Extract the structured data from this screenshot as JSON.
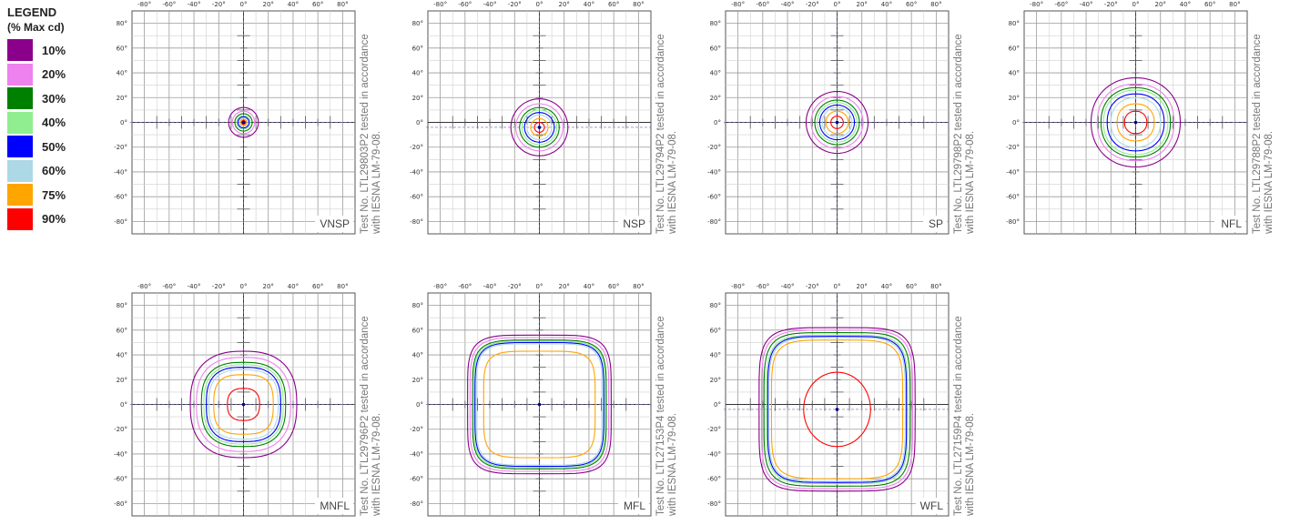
{
  "legend": {
    "title": "LEGEND",
    "subtitle": "(% Max cd)",
    "items": [
      {
        "label": "10%",
        "color": "#8b008b",
        "level": 10
      },
      {
        "label": "20%",
        "color": "#ee82ee",
        "level": 20
      },
      {
        "label": "30%",
        "color": "#008000",
        "level": 30
      },
      {
        "label": "40%",
        "color": "#90ee90",
        "level": 40
      },
      {
        "label": "50%",
        "color": "#0000ff",
        "level": 50
      },
      {
        "label": "60%",
        "color": "#add8e6",
        "level": 60
      },
      {
        "label": "75%",
        "color": "#ffa500",
        "level": 75
      },
      {
        "label": "90%",
        "color": "#ff0000",
        "level": 90
      }
    ]
  },
  "chart_data": [
    {
      "type": "contour",
      "tag": "VNSP",
      "note_line1": "Test No. LTL29803P2 tested in accordance",
      "note_line2": "with IESNA LM-79-08.",
      "xlim": [
        -90,
        90
      ],
      "ylim": [
        -90,
        90
      ],
      "x_ticks": [
        "-80°",
        "-60°",
        "-40°",
        "-20°",
        "0°",
        "20°",
        "40°",
        "60°",
        "80°"
      ],
      "y_ticks": [
        "80°",
        "60°",
        "40°",
        "20°",
        "0°",
        "-20°",
        "-40°",
        "-60°",
        "-80°"
      ],
      "center": [
        0,
        0
      ],
      "contours": [
        {
          "level": 10,
          "w": 12,
          "h": 12,
          "sq": 2
        },
        {
          "level": 20,
          "w": 9,
          "h": 9,
          "sq": 2
        },
        {
          "level": 30,
          "w": 7,
          "h": 7,
          "sq": 2
        },
        {
          "level": 40,
          "w": 5.5,
          "h": 5.5,
          "sq": 2
        },
        {
          "level": 50,
          "w": 4.5,
          "h": 4.5,
          "sq": 2
        },
        {
          "level": 60,
          "w": 3.5,
          "h": 3.5,
          "sq": 2
        },
        {
          "level": 75,
          "w": 2.5,
          "h": 2.5,
          "sq": 2
        },
        {
          "level": 90,
          "w": 1.5,
          "h": 1.5,
          "sq": 2
        }
      ]
    },
    {
      "type": "contour",
      "tag": "NSP",
      "note_line1": "Test No. LTL29794P2 tested in accordance",
      "note_line2": "with IESNA LM-79-08.",
      "xlim": [
        -90,
        90
      ],
      "ylim": [
        -90,
        90
      ],
      "x_ticks": [
        "-80°",
        "-60°",
        "-40°",
        "-20°",
        "0°",
        "20°",
        "40°",
        "60°",
        "80°"
      ],
      "y_ticks": [
        "80°",
        "60°",
        "40°",
        "20°",
        "0°",
        "-20°",
        "-40°",
        "-60°",
        "-80°"
      ],
      "center": [
        0,
        -4
      ],
      "contours": [
        {
          "level": 10,
          "w": 23,
          "h": 23,
          "sq": 2
        },
        {
          "level": 20,
          "w": 19,
          "h": 19,
          "sq": 2
        },
        {
          "level": 30,
          "w": 16,
          "h": 16,
          "sq": 2
        },
        {
          "level": 40,
          "w": 14,
          "h": 14,
          "sq": 2
        },
        {
          "level": 50,
          "w": 12,
          "h": 12,
          "sq": 2
        },
        {
          "level": 60,
          "w": 10,
          "h": 10,
          "sq": 2
        },
        {
          "level": 75,
          "w": 7,
          "h": 7,
          "sq": 2
        },
        {
          "level": 90,
          "w": 4,
          "h": 4,
          "sq": 2
        }
      ]
    },
    {
      "type": "contour",
      "tag": "SP",
      "note_line1": "Test No. LTL29798P2 tested in accordance",
      "note_line2": "with IESNA LM-79-08.",
      "xlim": [
        -90,
        90
      ],
      "ylim": [
        -90,
        90
      ],
      "x_ticks": [
        "-80°",
        "-60°",
        "-40°",
        "-20°",
        "0°",
        "20°",
        "40°",
        "60°",
        "80°"
      ],
      "y_ticks": [
        "80°",
        "60°",
        "40°",
        "20°",
        "0°",
        "-20°",
        "-40°",
        "-60°",
        "-80°"
      ],
      "center": [
        0,
        0
      ],
      "contours": [
        {
          "level": 10,
          "w": 25,
          "h": 25,
          "sq": 2
        },
        {
          "level": 20,
          "w": 21,
          "h": 21,
          "sq": 2
        },
        {
          "level": 30,
          "w": 18,
          "h": 18,
          "sq": 2
        },
        {
          "level": 40,
          "w": 16,
          "h": 16,
          "sq": 2
        },
        {
          "level": 50,
          "w": 14,
          "h": 14,
          "sq": 2
        },
        {
          "level": 60,
          "w": 12,
          "h": 12,
          "sq": 2
        },
        {
          "level": 75,
          "w": 9,
          "h": 9,
          "sq": 2
        },
        {
          "level": 90,
          "w": 5,
          "h": 5,
          "sq": 2
        }
      ]
    },
    {
      "type": "contour",
      "tag": "NFL",
      "note_line1": "Test No. LTL29788P2 tested in accordance",
      "note_line2": "with IESNA LM-79-08.",
      "xlim": [
        -90,
        90
      ],
      "ylim": [
        -90,
        90
      ],
      "x_ticks": [
        "-80°",
        "-60°",
        "-40°",
        "-20°",
        "0°",
        "20°",
        "40°",
        "60°",
        "80°"
      ],
      "y_ticks": [
        "80°",
        "60°",
        "40°",
        "20°",
        "0°",
        "-20°",
        "-40°",
        "-60°",
        "-80°"
      ],
      "center": [
        0,
        0
      ],
      "contours": [
        {
          "level": 10,
          "w": 36,
          "h": 36,
          "sq": 2.1
        },
        {
          "level": 20,
          "w": 31,
          "h": 31,
          "sq": 2.2
        },
        {
          "level": 30,
          "w": 28,
          "h": 28,
          "sq": 2.2
        },
        {
          "level": 40,
          "w": 26,
          "h": 26,
          "sq": 2.2
        },
        {
          "level": 50,
          "w": 23,
          "h": 23,
          "sq": 2.2
        },
        {
          "level": 60,
          "w": 20,
          "h": 20,
          "sq": 2.2
        },
        {
          "level": 75,
          "w": 15,
          "h": 15,
          "sq": 2.2
        },
        {
          "level": 90,
          "w": 9,
          "h": 9,
          "sq": 2.2
        }
      ]
    },
    {
      "type": "contour",
      "tag": "MNFL",
      "note_line1": "Test No. LTL29796P2 tested in accordance",
      "note_line2": "with IESNA LM-79-08.",
      "xlim": [
        -90,
        90
      ],
      "ylim": [
        -90,
        90
      ],
      "x_ticks": [
        "-80°",
        "-60°",
        "-40°",
        "-20°",
        "0°",
        "20°",
        "40°",
        "60°",
        "80°"
      ],
      "y_ticks": [
        "80°",
        "60°",
        "40°",
        "20°",
        "0°",
        "-20°",
        "-40°",
        "-60°",
        "-80°"
      ],
      "center": [
        0,
        0
      ],
      "contours": [
        {
          "level": 10,
          "w": 43,
          "h": 43,
          "sq": 2.5
        },
        {
          "level": 20,
          "w": 38,
          "h": 38,
          "sq": 2.6
        },
        {
          "level": 30,
          "w": 34,
          "h": 34,
          "sq": 2.7
        },
        {
          "level": 40,
          "w": 32,
          "h": 32,
          "sq": 2.7
        },
        {
          "level": 50,
          "w": 30,
          "h": 30,
          "sq": 2.8
        },
        {
          "level": 60,
          "w": 28,
          "h": 28,
          "sq": 2.8
        },
        {
          "level": 75,
          "w": 24,
          "h": 24,
          "sq": 3
        },
        {
          "level": 90,
          "w": 13,
          "h": 13,
          "sq": 2.5
        }
      ]
    },
    {
      "type": "contour",
      "tag": "MFL",
      "note_line1": "Test No. LTL27153P4 tested in accordance",
      "note_line2": "with IESNA LM-79-08.",
      "xlim": [
        -90,
        90
      ],
      "ylim": [
        -90,
        90
      ],
      "x_ticks": [
        "-80°",
        "-60°",
        "-40°",
        "-20°",
        "0°",
        "20°",
        "40°",
        "60°",
        "80°"
      ],
      "y_ticks": [
        "80°",
        "60°",
        "40°",
        "20°",
        "0°",
        "-20°",
        "-40°",
        "-60°",
        "-80°"
      ],
      "center": [
        0,
        0
      ],
      "contours": [
        {
          "level": 10,
          "w": 58,
          "h": 56,
          "sq": 5
        },
        {
          "level": 20,
          "w": 56,
          "h": 54,
          "sq": 5
        },
        {
          "level": 30,
          "w": 54,
          "h": 52,
          "sq": 5
        },
        {
          "level": 40,
          "w": 53,
          "h": 51,
          "sq": 5
        },
        {
          "level": 50,
          "w": 52,
          "h": 50,
          "sq": 5
        },
        {
          "level": 60,
          "w": 51,
          "h": 49,
          "sq": 5
        },
        {
          "level": 75,
          "w": 45,
          "h": 43,
          "sq": 5
        }
      ]
    },
    {
      "type": "contour",
      "tag": "WFL",
      "note_line1": "Test No. LTL27159P4 tested in accordance",
      "note_line2": "with IESNA LM-79-08.",
      "xlim": [
        -90,
        90
      ],
      "ylim": [
        -90,
        90
      ],
      "x_ticks": [
        "-80°",
        "-60°",
        "-40°",
        "-20°",
        "0°",
        "20°",
        "40°",
        "60°",
        "80°"
      ],
      "y_ticks": [
        "80°",
        "60°",
        "40°",
        "20°",
        "0°",
        "-20°",
        "-40°",
        "-60°",
        "-80°"
      ],
      "center": [
        0,
        -4
      ],
      "contours": [
        {
          "level": 10,
          "w": 63,
          "h": 66,
          "sq": 5
        },
        {
          "level": 20,
          "w": 61,
          "h": 64,
          "sq": 5
        },
        {
          "level": 30,
          "w": 59,
          "h": 62,
          "sq": 5
        },
        {
          "level": 40,
          "w": 57,
          "h": 60,
          "sq": 5
        },
        {
          "level": 50,
          "w": 56,
          "h": 59,
          "sq": 5
        },
        {
          "level": 60,
          "w": 55,
          "h": 58,
          "sq": 5
        },
        {
          "level": 75,
          "w": 53,
          "h": 56,
          "sq": 5
        },
        {
          "level": 90,
          "w": 27,
          "h": 30,
          "sq": 2
        }
      ]
    }
  ]
}
